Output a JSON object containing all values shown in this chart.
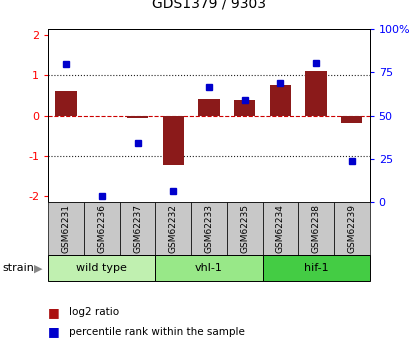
{
  "title": "GDS1379 / 9303",
  "samples": [
    "GSM62231",
    "GSM62236",
    "GSM62237",
    "GSM62232",
    "GSM62233",
    "GSM62235",
    "GSM62234",
    "GSM62238",
    "GSM62239"
  ],
  "log2_ratio": [
    0.62,
    0.0,
    -0.07,
    -1.22,
    0.42,
    0.38,
    0.75,
    1.1,
    -0.18
  ],
  "percentile": [
    82,
    0,
    33,
    3,
    68,
    60,
    70,
    83,
    22
  ],
  "groups": [
    {
      "label": "wild type",
      "start": 0,
      "end": 3,
      "color": "#c0f0b0"
    },
    {
      "label": "vhl-1",
      "start": 3,
      "end": 6,
      "color": "#98e888"
    },
    {
      "label": "hif-1",
      "start": 6,
      "end": 9,
      "color": "#44cc44"
    }
  ],
  "ylim": [
    -2.15,
    2.15
  ],
  "yticks_left": [
    -2,
    -1,
    0,
    1,
    2
  ],
  "yticks_right": [
    0,
    25,
    50,
    75,
    100
  ],
  "bar_color": "#8b1a1a",
  "dot_color": "#0000cc",
  "hline_color": "#cc0000",
  "dotline_color": "#222222",
  "legend_bar_color": "#aa1111",
  "legend_dot_color": "#0000cc",
  "strain_label": "strain",
  "legend1": "log2 ratio",
  "legend2": "percentile rank within the sample",
  "background_color": "#ffffff",
  "label_box_color": "#c8c8c8"
}
